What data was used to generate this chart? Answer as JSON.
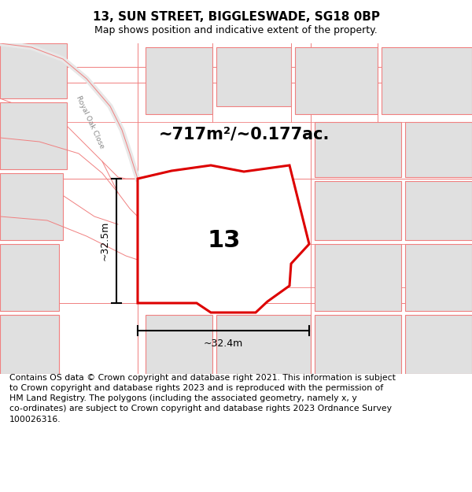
{
  "title": "13, SUN STREET, BIGGLESWADE, SG18 0BP",
  "subtitle": "Map shows position and indicative extent of the property.",
  "footer": "Contains OS data © Crown copyright and database right 2021. This information is subject\nto Crown copyright and database rights 2023 and is reproduced with the permission of\nHM Land Registry. The polygons (including the associated geometry, namely x, y\nco-ordinates) are subject to Crown copyright and database rights 2023 Ordnance Survey\n100026316.",
  "area_label": "~717m²/~0.177ac.",
  "width_label": "~32.4m",
  "height_label": "~32.5m",
  "property_number": "13",
  "bg_color": "#ffffff",
  "map_bg": "#ffffff",
  "plot_color_fill": "#ffffff",
  "plot_color_edge": "#dd0000",
  "background_parcel_fill": "#e0e0e0",
  "background_parcel_edge": "#f08080",
  "road_line_color": "#f08080",
  "title_fontsize": 11,
  "subtitle_fontsize": 9,
  "footer_fontsize": 7.8,
  "area_fontsize": 15,
  "number_fontsize": 22,
  "meas_fontsize": 9
}
